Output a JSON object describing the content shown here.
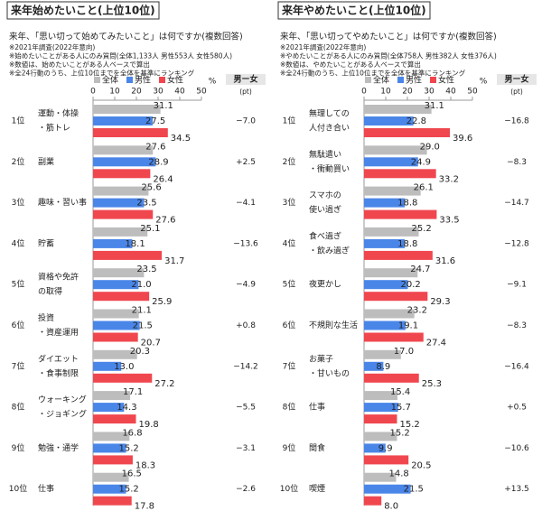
{
  "chart_data": [
    {
      "type": "bar",
      "orientation": "horizontal",
      "title": "来年始めたいこと(上位10位)",
      "subtitle": "来年、「思い切って始めてみたいこと」は何ですか(複数回答)",
      "notes": [
        "※2021年調査(2022年意向)",
        "※始めたいことがある人にのみ質問(全体1,133人 男性553人 女性580人)",
        "※数値は、始めたいことがある人ベースで算出",
        "※全24行動のうち、上位10位までを全体を基準にランキング"
      ],
      "ranks": [
        "1位",
        "2位",
        "3位",
        "4位",
        "5位",
        "6位",
        "7位",
        "8位",
        "9位",
        "10位"
      ],
      "categories": [
        [
          "運動・体操",
          "・筋トレ"
        ],
        [
          "副業"
        ],
        [
          "趣味・習い事"
        ],
        [
          "貯蓄"
        ],
        [
          "資格や免許",
          "の取得"
        ],
        [
          "投資",
          "・資産運用"
        ],
        [
          "ダイエット",
          "・食事制限"
        ],
        [
          "ウォーキング",
          "・ジョギング"
        ],
        [
          "勉強・通学"
        ],
        [
          "仕事"
        ]
      ],
      "series": [
        {
          "name": "全体",
          "color": "#bdbdbd",
          "values": [
            31.1,
            27.6,
            25.6,
            25.1,
            23.5,
            21.1,
            20.3,
            17.1,
            16.8,
            16.5
          ],
          "value_labels": [
            "31.1",
            "27.6",
            "25.6",
            "25.1",
            "23.5",
            "21.1",
            "20.3",
            "17.1",
            "16.8",
            "16.5"
          ]
        },
        {
          "name": "男性",
          "color": "#4a86e8",
          "values": [
            27.5,
            28.9,
            23.5,
            18.1,
            21.0,
            21.5,
            13.0,
            14.3,
            15.2,
            15.2
          ],
          "value_labels": [
            "27.5",
            "28.9",
            "23.5",
            "18.1",
            "21.0",
            "21.5",
            "13.0",
            "14.3",
            "15.2",
            "15.2"
          ]
        },
        {
          "name": "女性",
          "color": "#f0474f",
          "values": [
            34.5,
            26.4,
            27.6,
            31.7,
            25.9,
            20.7,
            27.2,
            19.8,
            18.3,
            17.8
          ],
          "value_labels": [
            "34.5",
            "26.4",
            "27.6",
            "31.7",
            "25.9",
            "20.7",
            "27.2",
            "19.8",
            "18.3",
            "17.8"
          ]
        }
      ],
      "diff": {
        "header": "男ー女",
        "unit": "(pt)",
        "values": [
          -7.0,
          2.5,
          -4.1,
          -13.6,
          -4.9,
          0.8,
          -14.2,
          -5.5,
          -3.1,
          -2.6
        ],
        "value_labels": [
          "−7.0",
          "+2.5",
          "−4.1",
          "−13.6",
          "−4.9",
          "+0.8",
          "−14.2",
          "−5.5",
          "−3.1",
          "−2.6"
        ]
      },
      "xlim": [
        0,
        50
      ],
      "xticks": [
        0,
        10,
        20,
        30,
        40,
        50
      ],
      "axis_unit": "%"
    },
    {
      "type": "bar",
      "orientation": "horizontal",
      "title": "来年やめたいこと(上位10位)",
      "subtitle": "来年、「思い切ってやめたいこと」は何ですか(複数回答)",
      "notes": [
        "※2021年調査(2022年意向)",
        "※やめたいことがある人にのみ質問(全体758人 男性382人 女性376人)",
        "※数値は、やめたいことがある人ベースで算出",
        "※全24行動のうち、上位10位までを全体を基準にランキング"
      ],
      "ranks": [
        "1位",
        "2位",
        "3位",
        "4位",
        "5位",
        "6位",
        "7位",
        "8位",
        "9位",
        "10位"
      ],
      "categories": [
        [
          "無理しての",
          "人付き合い"
        ],
        [
          "無駄遣い",
          "・衝動買い"
        ],
        [
          "スマホの",
          "使い過ぎ"
        ],
        [
          "食べ過ぎ",
          "・飲み過ぎ"
        ],
        [
          "夜更かし"
        ],
        [
          "不規則な生活"
        ],
        [
          "お菓子",
          "・甘いもの"
        ],
        [
          "仕事"
        ],
        [
          "間食"
        ],
        [
          "喫煙"
        ]
      ],
      "series": [
        {
          "name": "全体",
          "color": "#bdbdbd",
          "values": [
            31.1,
            29.0,
            26.1,
            25.2,
            24.7,
            23.2,
            17.0,
            15.4,
            15.2,
            14.8
          ],
          "value_labels": [
            "31.1",
            "29.0",
            "26.1",
            "25.2",
            "24.7",
            "23.2",
            "17.0",
            "15.4",
            "15.2",
            "14.8"
          ]
        },
        {
          "name": "男性",
          "color": "#4a86e8",
          "values": [
            22.8,
            24.9,
            18.8,
            18.8,
            20.2,
            19.1,
            8.9,
            15.7,
            9.9,
            21.5
          ],
          "value_labels": [
            "22.8",
            "24.9",
            "18.8",
            "18.8",
            "20.2",
            "19.1",
            "8.9",
            "15.7",
            "9.9",
            "21.5"
          ]
        },
        {
          "name": "女性",
          "color": "#f0474f",
          "values": [
            39.6,
            33.2,
            33.5,
            31.6,
            29.3,
            27.4,
            25.3,
            15.2,
            20.5,
            8.0
          ],
          "value_labels": [
            "39.6",
            "33.2",
            "33.5",
            "31.6",
            "29.3",
            "27.4",
            "25.3",
            "15.2",
            "20.5",
            "8.0"
          ]
        }
      ],
      "diff": {
        "header": "男ー女",
        "unit": "(pt)",
        "values": [
          -16.8,
          -8.3,
          -14.7,
          -12.8,
          -9.1,
          -8.3,
          -16.4,
          0.5,
          -10.6,
          13.5
        ],
        "value_labels": [
          "−16.8",
          "−8.3",
          "−14.7",
          "−12.8",
          "−9.1",
          "−8.3",
          "−16.4",
          "+0.5",
          "−10.6",
          "+13.5"
        ]
      },
      "xlim": [
        0,
        50
      ],
      "xticks": [
        0,
        10,
        20,
        30,
        40,
        50
      ],
      "axis_unit": "%"
    }
  ]
}
